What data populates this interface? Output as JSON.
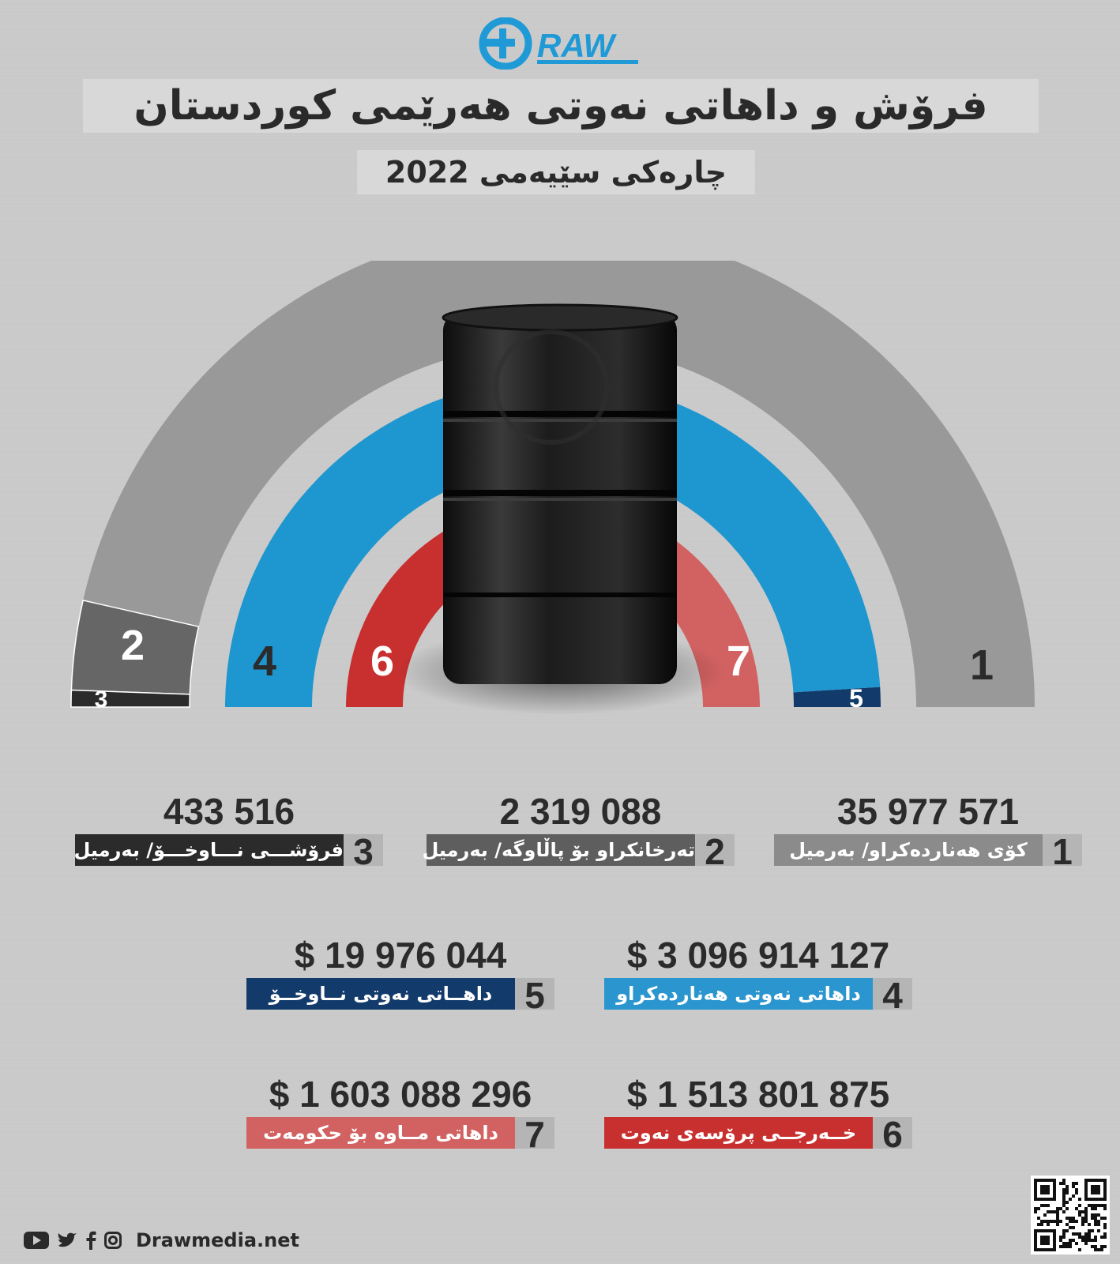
{
  "brand": {
    "logo_text": "RAW",
    "website": "Drawmedia.net"
  },
  "header": {
    "title": "فرۆش و داهاتی نەوتی هەرێمی کوردستان",
    "subtitle": "چارەکی سێیەمی 2022"
  },
  "chart_data": {
    "type": "radial-bar",
    "categories": [
      "1",
      "2",
      "3",
      "4",
      "5",
      "6",
      "7"
    ],
    "series": [
      {
        "name": "کۆی هەناردەکراو/ بەرمیل",
        "number": "1",
        "value": 35977571,
        "unit": "بەرمیل",
        "color": "#999999"
      },
      {
        "name": "تەرخانکراو بۆ پاڵاوگە/ بەرمیل",
        "number": "2",
        "value": 2319088,
        "unit": "بەرمیل",
        "color": "#666666"
      },
      {
        "name": "فرۆشـــی نـــاوخـــۆ/ بەرمیل",
        "number": "3",
        "value": 433516,
        "unit": "بەرمیل",
        "color": "#2b2b2b"
      },
      {
        "name": "داهاتی نەوتی هەناردەکراو",
        "number": "4",
        "value": 3096914127,
        "unit": "$",
        "color": "#1e96cf"
      },
      {
        "name": "داهــاتی نەوتی نــاوخــۆ",
        "number": "5",
        "value": 19976044,
        "unit": "$",
        "color": "#123a6b"
      },
      {
        "name": "خــەرجــی پرۆسەی نەوت",
        "number": "6",
        "value": 1513801875,
        "unit": "$",
        "color": "#c8302f"
      },
      {
        "name": "داهاتی مــاوە بۆ حکومەت",
        "number": "7",
        "value": 1603088296,
        "unit": "$",
        "color": "#d26262"
      }
    ]
  },
  "stats": [
    {
      "number": "1",
      "value": "35 977 571",
      "label": "کۆی هەناردەکراو/ بەرمیل",
      "color": "#8b8b8b"
    },
    {
      "number": "2",
      "value": "2 319 088",
      "label": "تەرخانکراو بۆ پاڵاوگە/ بەرمیل",
      "color": "#5e5e5e"
    },
    {
      "number": "3",
      "value": "433 516",
      "label": "فرۆشـــی نـــاوخـــۆ/ بەرمیل",
      "color": "#2b2b2b"
    },
    {
      "number": "4",
      "value": "$ 3 096 914 127",
      "label": "داهاتی نەوتی هەناردەکراو",
      "color": "#2a95cf"
    },
    {
      "number": "5",
      "value": "$ 19 976 044",
      "label": "داهــاتی نەوتی نــاوخــۆ",
      "color": "#123a6b"
    },
    {
      "number": "6",
      "value": "$ 1 513 801 875",
      "label": "خــەرجــی پرۆسەی نەوت",
      "color": "#c8302f"
    },
    {
      "number": "7",
      "value": "$ 1 603 088 296",
      "label": "داهاتی مــاوە بۆ حکومەت",
      "color": "#d26262"
    }
  ],
  "icons": [
    "youtube-icon",
    "twitter-icon",
    "facebook-icon",
    "instagram-icon",
    "qr-code-icon",
    "oil-barrel-icon"
  ]
}
